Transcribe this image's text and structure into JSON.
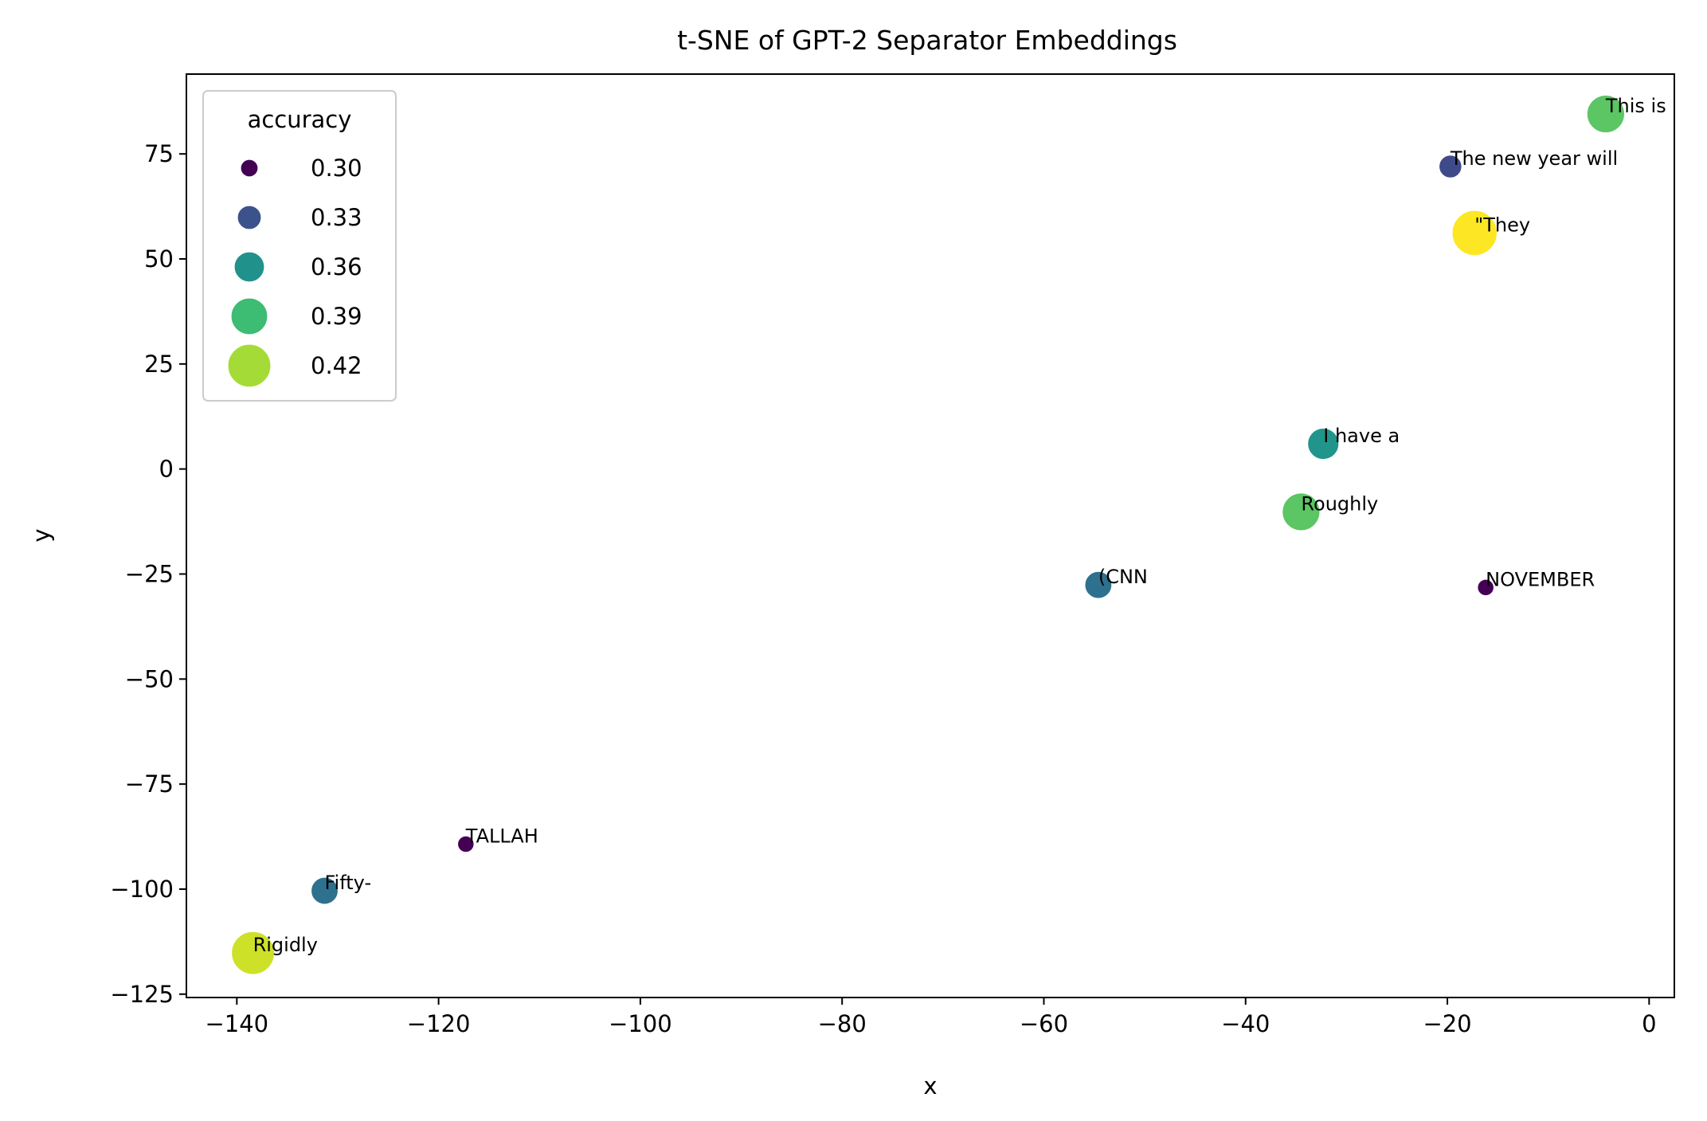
{
  "chart_data": {
    "type": "scatter",
    "title": "t-SNE of GPT-2 Separator Embeddings",
    "xlabel": "x",
    "ylabel": "y",
    "xlim": [
      -145,
      2.5
    ],
    "ylim": [
      -125.8,
      94
    ],
    "x_ticks": [
      -140,
      -120,
      -100,
      -80,
      -60,
      -40,
      -20,
      0
    ],
    "y_ticks": [
      75,
      50,
      25,
      0,
      -25,
      -50,
      -75,
      -100,
      -125
    ],
    "grid": false,
    "legend": {
      "title": "accuracy",
      "placement": "top-left",
      "entries": [
        {
          "label": "0.30",
          "value": 0.3,
          "color": "#440154"
        },
        {
          "label": "0.33",
          "value": 0.33,
          "color": "#3b528b"
        },
        {
          "label": "0.36",
          "value": 0.36,
          "color": "#21918c"
        },
        {
          "label": "0.39",
          "value": 0.39,
          "color": "#3dbc74"
        },
        {
          "label": "0.42",
          "value": 0.42,
          "color": "#a5db36"
        }
      ]
    },
    "color_map": "viridis",
    "accuracy_range": [
      0.295,
      0.43
    ],
    "points": [
      {
        "label": "This is",
        "x": -4.3,
        "y": 84.5,
        "accuracy": 0.395
      },
      {
        "label": "The new year will",
        "x": -19.7,
        "y": 72.0,
        "accuracy": 0.325
      },
      {
        "label": "\"They",
        "x": -17.3,
        "y": 56.2,
        "accuracy": 0.43
      },
      {
        "label": "I have a",
        "x": -32.3,
        "y": 6.0,
        "accuracy": 0.365
      },
      {
        "label": "Roughly",
        "x": -34.5,
        "y": -10.2,
        "accuracy": 0.395
      },
      {
        "label": "(CNN",
        "x": -54.6,
        "y": -27.6,
        "accuracy": 0.345
      },
      {
        "label": "NOVEMBER",
        "x": -16.2,
        "y": -28.2,
        "accuracy": 0.295
      },
      {
        "label": "TALLAH",
        "x": -117.3,
        "y": -89.3,
        "accuracy": 0.295
      },
      {
        "label": "Fifty-",
        "x": -131.3,
        "y": -100.4,
        "accuracy": 0.345
      },
      {
        "label": "Rigidly",
        "x": -138.4,
        "y": -115.2,
        "accuracy": 0.42
      }
    ]
  }
}
